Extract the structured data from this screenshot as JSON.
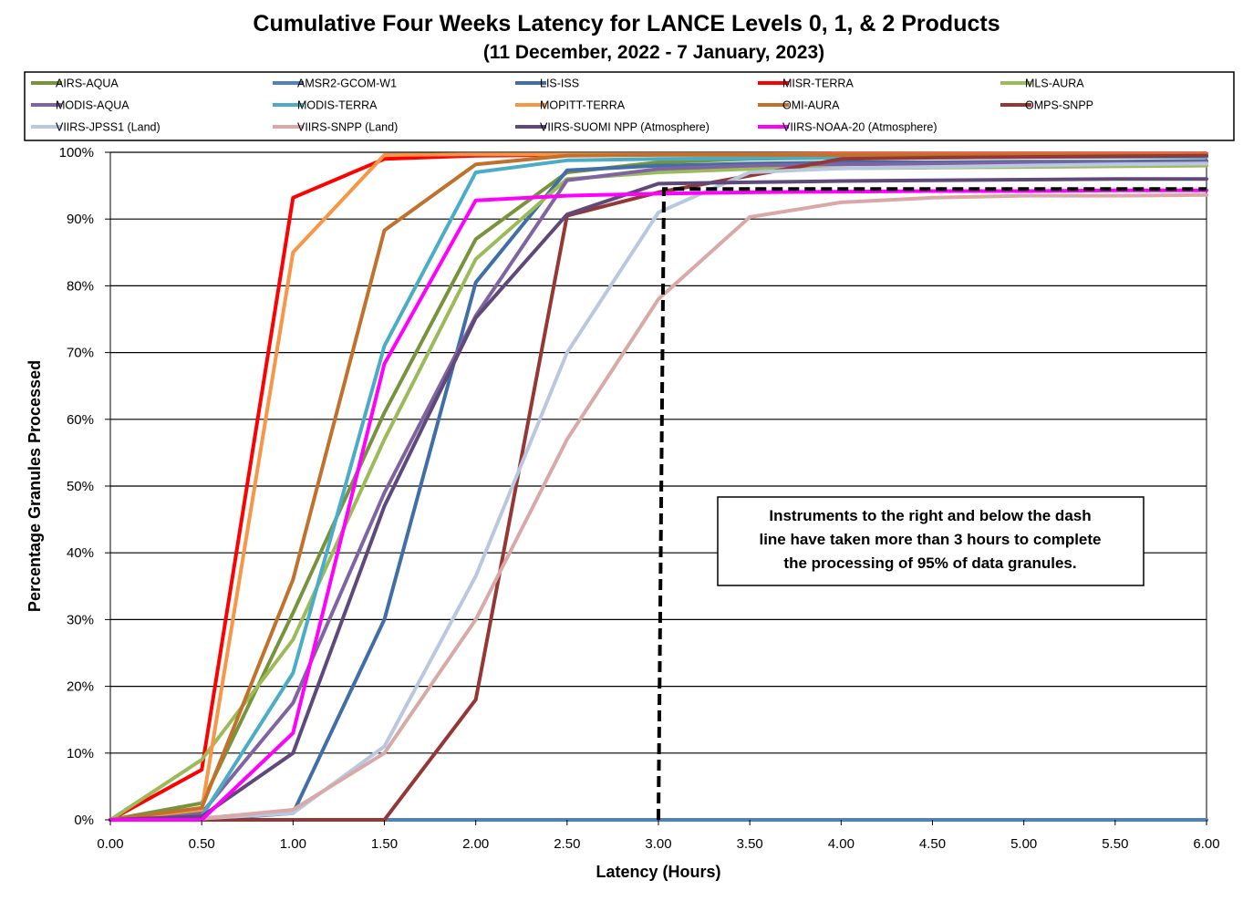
{
  "chart_data": {
    "type": "line",
    "title": "Cumulative Four Weeks Latency  for LANCE Levels 0, 1, & 2 Products",
    "subtitle": "(11 December, 2022  -  7 January, 2023)",
    "xlabel": "Latency (Hours)",
    "ylabel": "Percentage Granules Processed",
    "xlim": [
      0,
      6
    ],
    "ylim": [
      0,
      100
    ],
    "grid": "horizontal",
    "legend_position": "top",
    "x_ticks": [
      "0.00",
      "0.50",
      "1.00",
      "1.50",
      "2.00",
      "2.50",
      "3.00",
      "3.50",
      "4.00",
      "4.50",
      "5.00",
      "5.50",
      "6.00"
    ],
    "y_ticks": [
      "0%",
      "10%",
      "20%",
      "30%",
      "40%",
      "50%",
      "60%",
      "70%",
      "80%",
      "90%",
      "100%"
    ],
    "x": [
      0,
      0.5,
      1,
      1.5,
      2,
      2.5,
      3,
      3.5,
      4,
      4.5,
      5,
      5.5,
      6
    ],
    "series": [
      {
        "name": "AIRS-AQUA",
        "color": "#77933c",
        "values": [
          0,
          2.5,
          31,
          61,
          87,
          97,
          98.5,
          99,
          99.2,
          99.3,
          99.4,
          99.4,
          99.5
        ]
      },
      {
        "name": "AMSR2-GCOM-W1",
        "color": "#4f81bd",
        "values": [
          0,
          0,
          0,
          0,
          0,
          0,
          0,
          0,
          0,
          0,
          0,
          0,
          0
        ]
      },
      {
        "name": "LIS-ISS",
        "color": "#3f6fa6",
        "values": [
          0,
          0,
          1,
          30,
          80.5,
          97.3,
          98,
          98.3,
          98.5,
          98.5,
          98.6,
          98.6,
          98.7
        ]
      },
      {
        "name": "MISR-TERRA",
        "color": "#ff0000",
        "values": [
          0,
          7.5,
          93.2,
          99,
          99.5,
          99.6,
          99.7,
          99.7,
          99.8,
          99.8,
          99.8,
          99.8,
          99.8
        ]
      },
      {
        "name": "MLS-AURA",
        "color": "#9bbb59",
        "values": [
          0,
          9,
          27,
          57,
          84,
          96,
          97,
          97.5,
          97.6,
          97.7,
          97.8,
          97.9,
          98
        ]
      },
      {
        "name": "MODIS-AQUA",
        "color": "#8064a2",
        "values": [
          0,
          1,
          17.5,
          49,
          75.5,
          95.8,
          97.5,
          98,
          98.2,
          98.3,
          98.4,
          98.4,
          98.5
        ]
      },
      {
        "name": "MODIS-TERRA",
        "color": "#4bacc6",
        "values": [
          0,
          0.5,
          22,
          71,
          97,
          98.8,
          99,
          99.1,
          99.2,
          99.2,
          99.3,
          99.3,
          99.3
        ]
      },
      {
        "name": "MOPITT-TERRA",
        "color": "#f79646",
        "values": [
          0,
          1.5,
          85,
          99.6,
          99.7,
          99.7,
          99.7,
          99.7,
          99.7,
          99.7,
          99.7,
          99.7,
          99.7
        ]
      },
      {
        "name": "OMI-AURA",
        "color": "#c0712b",
        "values": [
          0,
          1.8,
          36,
          88.3,
          98.2,
          99.5,
          99.6,
          99.6,
          99.6,
          99.6,
          99.6,
          99.6,
          99.6
        ]
      },
      {
        "name": "OMPS-SNPP",
        "color": "#953735",
        "values": [
          0,
          0,
          0,
          0,
          18,
          90.5,
          94,
          96.5,
          99,
          99.2,
          99.3,
          99.4,
          99.5
        ]
      },
      {
        "name": "VIIRS-JPSS1 (Land)",
        "color": "#b9c8e0",
        "values": [
          0,
          0.2,
          1,
          11,
          36.5,
          70,
          91,
          97,
          97.6,
          97.8,
          98,
          98.2,
          98.3
        ]
      },
      {
        "name": "VIIRS-SNPP (Land)",
        "color": "#d8a9a6",
        "values": [
          0,
          0.2,
          1.5,
          10,
          30,
          57,
          78,
          90.3,
          92.5,
          93.2,
          93.5,
          93.5,
          93.6
        ]
      },
      {
        "name": "VIIRS-SUOMI NPP (Atmosphere)",
        "color": "#5f497a",
        "values": [
          0,
          0.5,
          10,
          47,
          75.2,
          90.7,
          95.3,
          95.5,
          95.7,
          95.8,
          95.9,
          96,
          96
        ]
      },
      {
        "name": "VIIRS-NOAA-20 (Atmosphere)",
        "color": "#ff00ff",
        "values": [
          0,
          0,
          13,
          68.3,
          92.8,
          93.5,
          93.8,
          94,
          94.1,
          94.2,
          94.2,
          94.3,
          94.3
        ]
      }
    ],
    "threshold_line": {
      "style": "dashed",
      "color": "#000000",
      "points": [
        [
          3,
          0
        ],
        [
          3.03,
          94.5
        ],
        [
          6,
          94.5
        ]
      ]
    },
    "annotation": {
      "lines": [
        "Instruments to the right and below the dash",
        "line have taken more than 3 hours to complete",
        "the processing of 95% of data granules."
      ]
    }
  }
}
